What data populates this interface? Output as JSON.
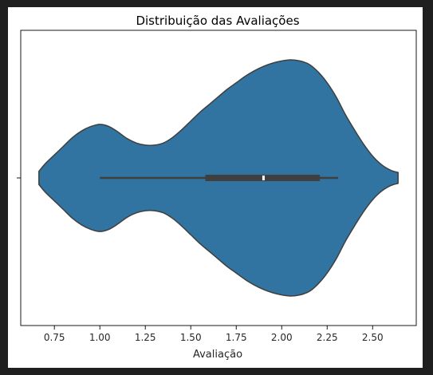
{
  "chart_data": {
    "type": "violin",
    "title": "Distribuição das Avaliações",
    "xlabel": "Avaliação",
    "ylabel": "",
    "xlim": [
      0.565,
      2.74
    ],
    "xticks": [
      0.75,
      1.0,
      1.25,
      1.5,
      1.75,
      2.0,
      2.25,
      2.5
    ],
    "xtick_labels": [
      "0.75",
      "1.00",
      "1.25",
      "1.50",
      "1.75",
      "2.00",
      "2.25",
      "2.50"
    ],
    "grid": false,
    "colors": {
      "violin_fill": "#3274a1",
      "edge": "#3f3f3f",
      "box": "#3f3f3f",
      "median": "#ffffff"
    },
    "density_profile": {
      "x": [
        0.665,
        0.7,
        0.75,
        0.8,
        0.85,
        0.9,
        0.95,
        1.0,
        1.05,
        1.1,
        1.15,
        1.2,
        1.25,
        1.3,
        1.35,
        1.4,
        1.45,
        1.5,
        1.55,
        1.6,
        1.65,
        1.7,
        1.75,
        1.8,
        1.85,
        1.9,
        1.95,
        2.0,
        2.05,
        2.1,
        2.15,
        2.2,
        2.25,
        2.3,
        2.35,
        2.4,
        2.45,
        2.5,
        2.55,
        2.6,
        2.64
      ],
      "half_width": [
        0.06,
        0.13,
        0.21,
        0.29,
        0.37,
        0.43,
        0.47,
        0.49,
        0.47,
        0.42,
        0.36,
        0.32,
        0.3,
        0.3,
        0.32,
        0.37,
        0.44,
        0.52,
        0.6,
        0.67,
        0.74,
        0.81,
        0.87,
        0.93,
        0.98,
        1.02,
        1.05,
        1.07,
        1.08,
        1.07,
        1.04,
        0.97,
        0.87,
        0.74,
        0.58,
        0.44,
        0.31,
        0.2,
        0.12,
        0.07,
        0.05
      ]
    },
    "box": {
      "whisker_low": 1.0,
      "q1": 1.58,
      "median": 1.9,
      "q3": 2.21,
      "whisker_high": 2.31
    }
  }
}
